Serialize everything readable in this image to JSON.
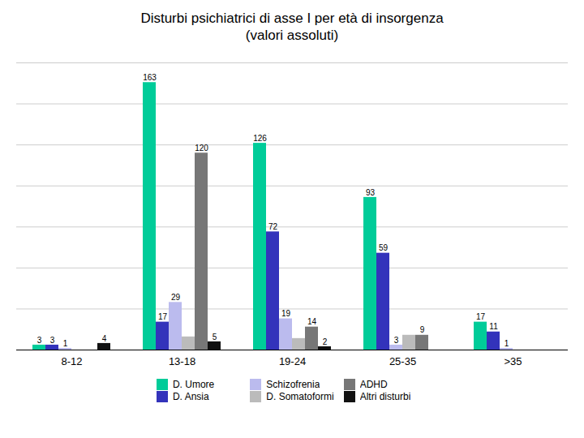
{
  "chart_data": {
    "type": "bar",
    "title": "Disturbi psichiatrici di asse I per età di insorgenza\n(valori assoluti)",
    "categories": [
      "8-12",
      "13-18",
      "19-24",
      "25-35",
      ">35"
    ],
    "series": [
      {
        "name": "D. Umore",
        "color": "#00CC99",
        "values": [
          3,
          163,
          126,
          93,
          17
        ],
        "data_labels": true
      },
      {
        "name": "D. Ansia",
        "color": "#3333BB",
        "values": [
          3,
          17,
          72,
          59,
          11
        ],
        "data_labels": true
      },
      {
        "name": "Schizofrenia",
        "color": "#BBBBEE",
        "values": [
          1,
          29,
          19,
          3,
          1
        ],
        "data_labels": true
      },
      {
        "name": "D. Somatoformi",
        "color": "#BBBBBB",
        "values": [
          0,
          8,
          7,
          9,
          0
        ],
        "data_labels": false
      },
      {
        "name": "ADHD",
        "color": "#777777",
        "values": [
          0,
          120,
          14,
          9,
          0
        ],
        "data_labels": true
      },
      {
        "name": "Altri disturbi",
        "color": "#111111",
        "values": [
          4,
          5,
          2,
          0,
          0
        ],
        "data_labels": true
      }
    ],
    "ylim": [
      0,
      175
    ],
    "yticks": [
      0,
      25,
      50,
      75,
      100,
      125,
      150,
      175
    ],
    "grid": true,
    "legend": "bottom",
    "tick_labels": "x"
  }
}
